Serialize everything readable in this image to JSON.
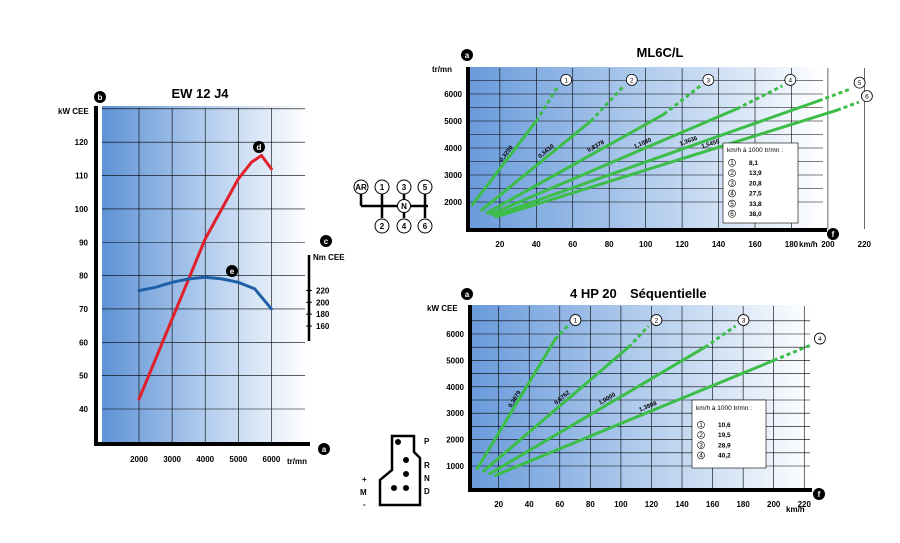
{
  "engine": {
    "title": "EW 12 J4",
    "badges": {
      "left": "b",
      "right": "c",
      "bottom": "a"
    },
    "power_axis_label": "kW CEE",
    "torque_axis_label": "Nm CEE",
    "x_unit": "tr/mn",
    "power_curve_marker": "d",
    "torque_curve_marker": "e",
    "colors": {
      "power": "#e0202a",
      "torque": "#1f5fa6"
    }
  },
  "manual": {
    "title": "ML6C/L",
    "badges": {
      "y": "a",
      "x": "f"
    },
    "y_unit": "tr/mn",
    "x_unit": "km/h",
    "legend_title": "km/h à 1000 tr/mn :",
    "legend": [
      {
        "gear": "1",
        "value": "8,1"
      },
      {
        "gear": "2",
        "value": "13,9"
      },
      {
        "gear": "3",
        "value": "20,8"
      },
      {
        "gear": "4",
        "value": "27,5"
      },
      {
        "gear": "5",
        "value": "33,8"
      },
      {
        "gear": "6",
        "value": "38,0"
      }
    ],
    "ratios": [
      "0,3250",
      "0,5610",
      "0,8378",
      "1,1080",
      "1,3636",
      "1,5455"
    ],
    "shift_pattern": [
      "AR",
      "1",
      "3",
      "5",
      "N",
      "2",
      "4",
      "6"
    ]
  },
  "auto": {
    "title_plain": "4 HP 20",
    "title_bold": "Séquentielle",
    "badges": {
      "y": "a",
      "x": "f"
    },
    "y_unit": "kW CEE",
    "x_unit": "km/h",
    "legend_title": "km/h à 1000 tr/mn :",
    "legend": [
      {
        "gear": "1",
        "value": "10,6"
      },
      {
        "gear": "2",
        "value": "19,5"
      },
      {
        "gear": "3",
        "value": "28,9"
      },
      {
        "gear": "4",
        "value": "40,2"
      }
    ],
    "ratios": [
      "0,3679",
      "0,6762",
      "1,0000",
      "1,3888"
    ],
    "gate_labels": [
      "P",
      "R",
      "N",
      "D",
      "+",
      "M",
      "-"
    ]
  },
  "chart_data": [
    {
      "type": "line",
      "title": "EW 12 J4",
      "xlabel": "tr/mn",
      "ylabel": "kW CEE",
      "y2label": "Nm CEE",
      "xlim": [
        1000,
        6700
      ],
      "ylim": [
        30,
        130
      ],
      "x_ticks": [
        2000,
        3000,
        4000,
        5000,
        6000
      ],
      "y_ticks": [
        40,
        50,
        60,
        70,
        80,
        90,
        100,
        110,
        120
      ],
      "y2_ticks": [
        160,
        180,
        200,
        220
      ],
      "series": [
        {
          "name": "d",
          "axis": "power",
          "x": [
            2000,
            2500,
            3000,
            3500,
            4000,
            4500,
            5000,
            5400,
            5700,
            6000
          ],
          "y": [
            43,
            55,
            67,
            79,
            91,
            100,
            109,
            114,
            116,
            112
          ]
        },
        {
          "name": "e",
          "axis": "torque",
          "x": [
            2000,
            2500,
            3000,
            3500,
            4000,
            4500,
            5000,
            5500,
            6000
          ],
          "y": [
            75.5,
            76.5,
            78,
            79,
            79.5,
            79,
            78,
            76,
            70
          ]
        }
      ]
    },
    {
      "type": "line",
      "title": "ML6C/L",
      "xlabel": "km/h",
      "ylabel": "tr/mn",
      "xlim": [
        0,
        230
      ],
      "ylim": [
        1500,
        6800
      ],
      "x_ticks": [
        20,
        40,
        60,
        80,
        100,
        120,
        140,
        160,
        180,
        200,
        220
      ],
      "y_ticks": [
        2000,
        3000,
        4000,
        5000,
        6000
      ],
      "series": [
        {
          "name": "1",
          "x": [
            5,
            40,
            52
          ],
          "y": [
            1900,
            5000,
            6300
          ]
        },
        {
          "name": "2",
          "x": [
            10,
            70,
            88
          ],
          "y": [
            1700,
            5000,
            6300
          ]
        },
        {
          "name": "3",
          "x": [
            13,
            110,
            130
          ],
          "y": [
            1600,
            5250,
            6300
          ]
        },
        {
          "name": "4",
          "x": [
            15,
            150,
            175
          ],
          "y": [
            1550,
            5450,
            6300
          ]
        },
        {
          "name": "5",
          "x": [
            17,
            195,
            213
          ],
          "y": [
            1500,
            5750,
            6200
          ]
        },
        {
          "name": "6",
          "x": [
            18,
            205,
            217
          ],
          "y": [
            1450,
            5400,
            5700
          ]
        }
      ]
    },
    {
      "type": "line",
      "title": "4 HP 20 Séquentielle",
      "xlabel": "km/h",
      "ylabel": "kW CEE",
      "xlim": [
        0,
        230
      ],
      "ylim": [
        500,
        6800
      ],
      "x_ticks": [
        20,
        40,
        60,
        80,
        100,
        120,
        140,
        160,
        180,
        200,
        220
      ],
      "y_ticks": [
        1000,
        2000,
        3000,
        4000,
        5000,
        6000
      ],
      "series": [
        {
          "name": "1",
          "x": [
            6,
            57,
            65
          ],
          "y": [
            900,
            5800,
            6300
          ]
        },
        {
          "name": "2",
          "x": [
            10,
            105,
            118
          ],
          "y": [
            800,
            5500,
            6300
          ]
        },
        {
          "name": "3",
          "x": [
            14,
            155,
            175
          ],
          "y": [
            700,
            5500,
            6300
          ]
        },
        {
          "name": "4",
          "x": [
            18,
            200,
            225
          ],
          "y": [
            650,
            5000,
            5600
          ]
        }
      ]
    }
  ]
}
